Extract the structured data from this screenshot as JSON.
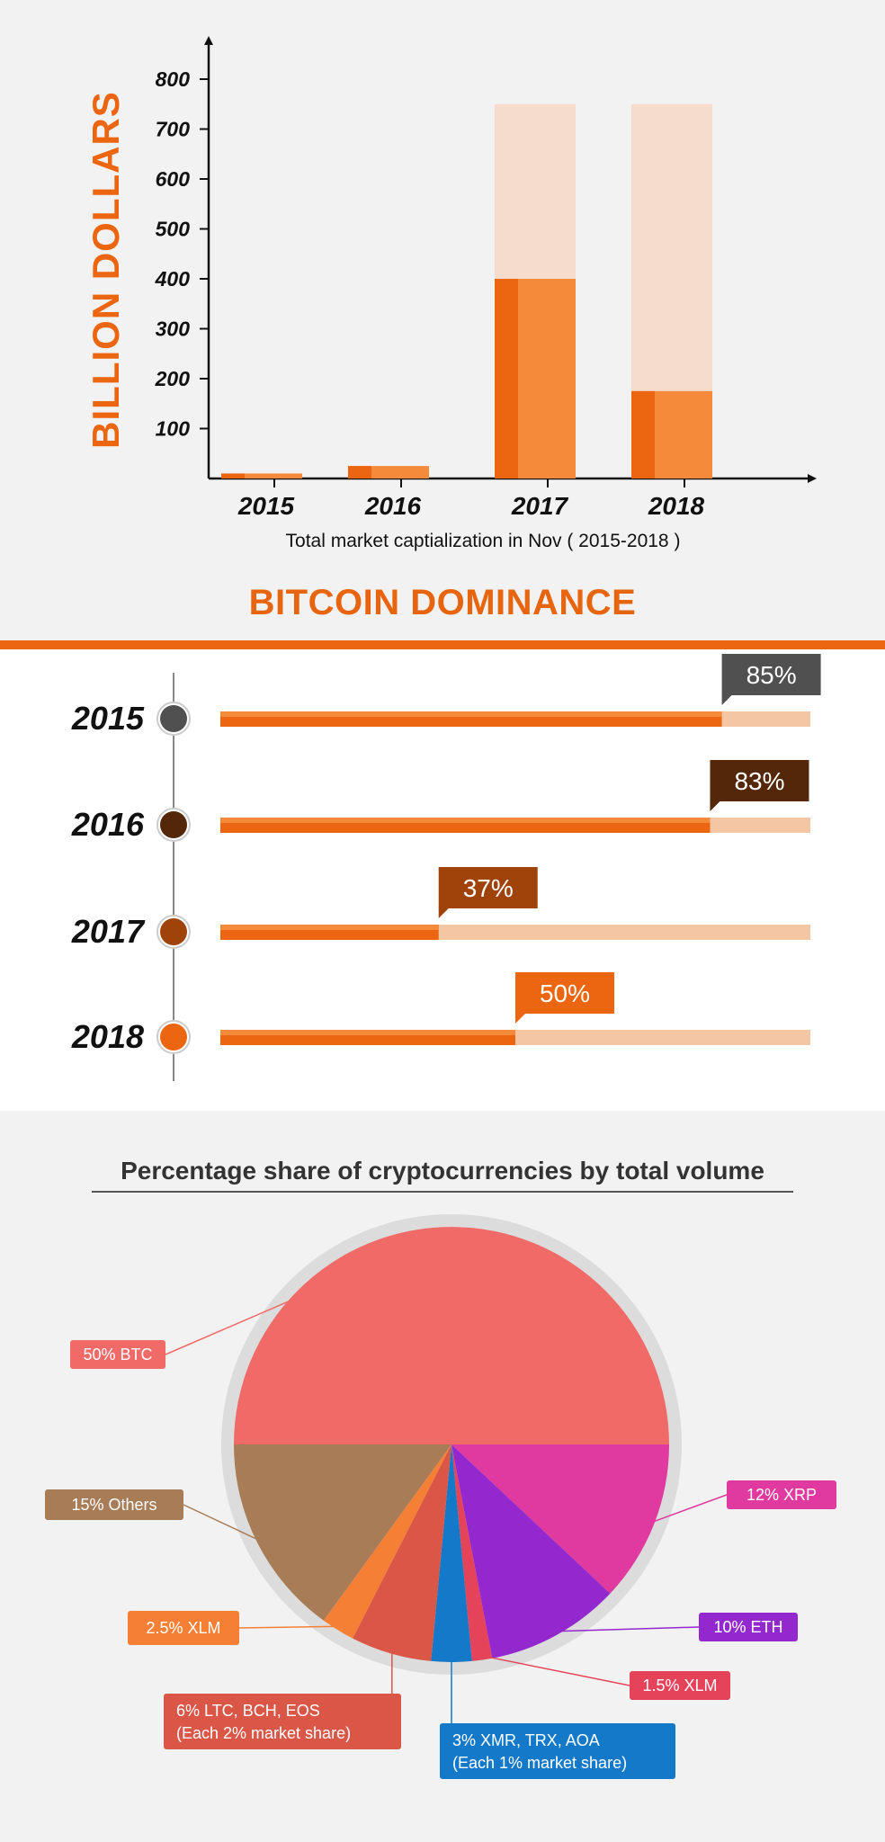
{
  "chart_data": [
    {
      "type": "bar",
      "categories": [
        "2015",
        "2016",
        "2017",
        "2018"
      ],
      "series": [
        {
          "values": [
            10,
            25,
            400,
            175
          ]
        },
        {
          "values": [
            10,
            25,
            750,
            750
          ]
        }
      ],
      "ylabel": "BILLION DOLLARS",
      "xlabel": "Total market captialization in Nov ( 2015-2018 )",
      "yticks": [
        100,
        200,
        300,
        400,
        500,
        600,
        700,
        800
      ],
      "ylim": [
        0,
        850
      ],
      "colors": {
        "main": "#ec6510",
        "light": "#f58a3b",
        "ghost": "#f5dccc"
      }
    },
    {
      "type": "bar",
      "title": "BITCOIN DOMINANCE",
      "categories": [
        "2015",
        "2016",
        "2017",
        "2018"
      ],
      "values": [
        85,
        83,
        37,
        50
      ],
      "labels": [
        "85%",
        "83%",
        "37%",
        "50%"
      ],
      "marker_colors": [
        "#505050",
        "#532707",
        "#a0430b",
        "#ec6510"
      ],
      "track_color": "#f5c6a3",
      "bar_color": "#ec6510"
    },
    {
      "type": "pie",
      "title": "Percentage share of cryptocurrencies by total volume",
      "slices": [
        {
          "label": "50% BTC",
          "value": 50,
          "color": "#f06a68"
        },
        {
          "label": "12% XRP",
          "value": 12,
          "color": "#e0399f"
        },
        {
          "label": "10% ETH",
          "value": 10,
          "color": "#9328cf"
        },
        {
          "label": "1.5% XLM",
          "value": 1.5,
          "color": "#e5435a"
        },
        {
          "label": "3% XMR, TRX, AOA",
          "label2": "(Each 1% market share)",
          "value": 3,
          "color": "#1479c9"
        },
        {
          "label": "6% LTC, BCH, EOS",
          "label2": "(Each 2% market share)",
          "value": 6,
          "color": "#da5647"
        },
        {
          "label": "2.5% XLM",
          "value": 2.5,
          "color": "#f58035"
        },
        {
          "label": "15% Others",
          "value": 15,
          "color": "#a87c57"
        }
      ]
    }
  ]
}
